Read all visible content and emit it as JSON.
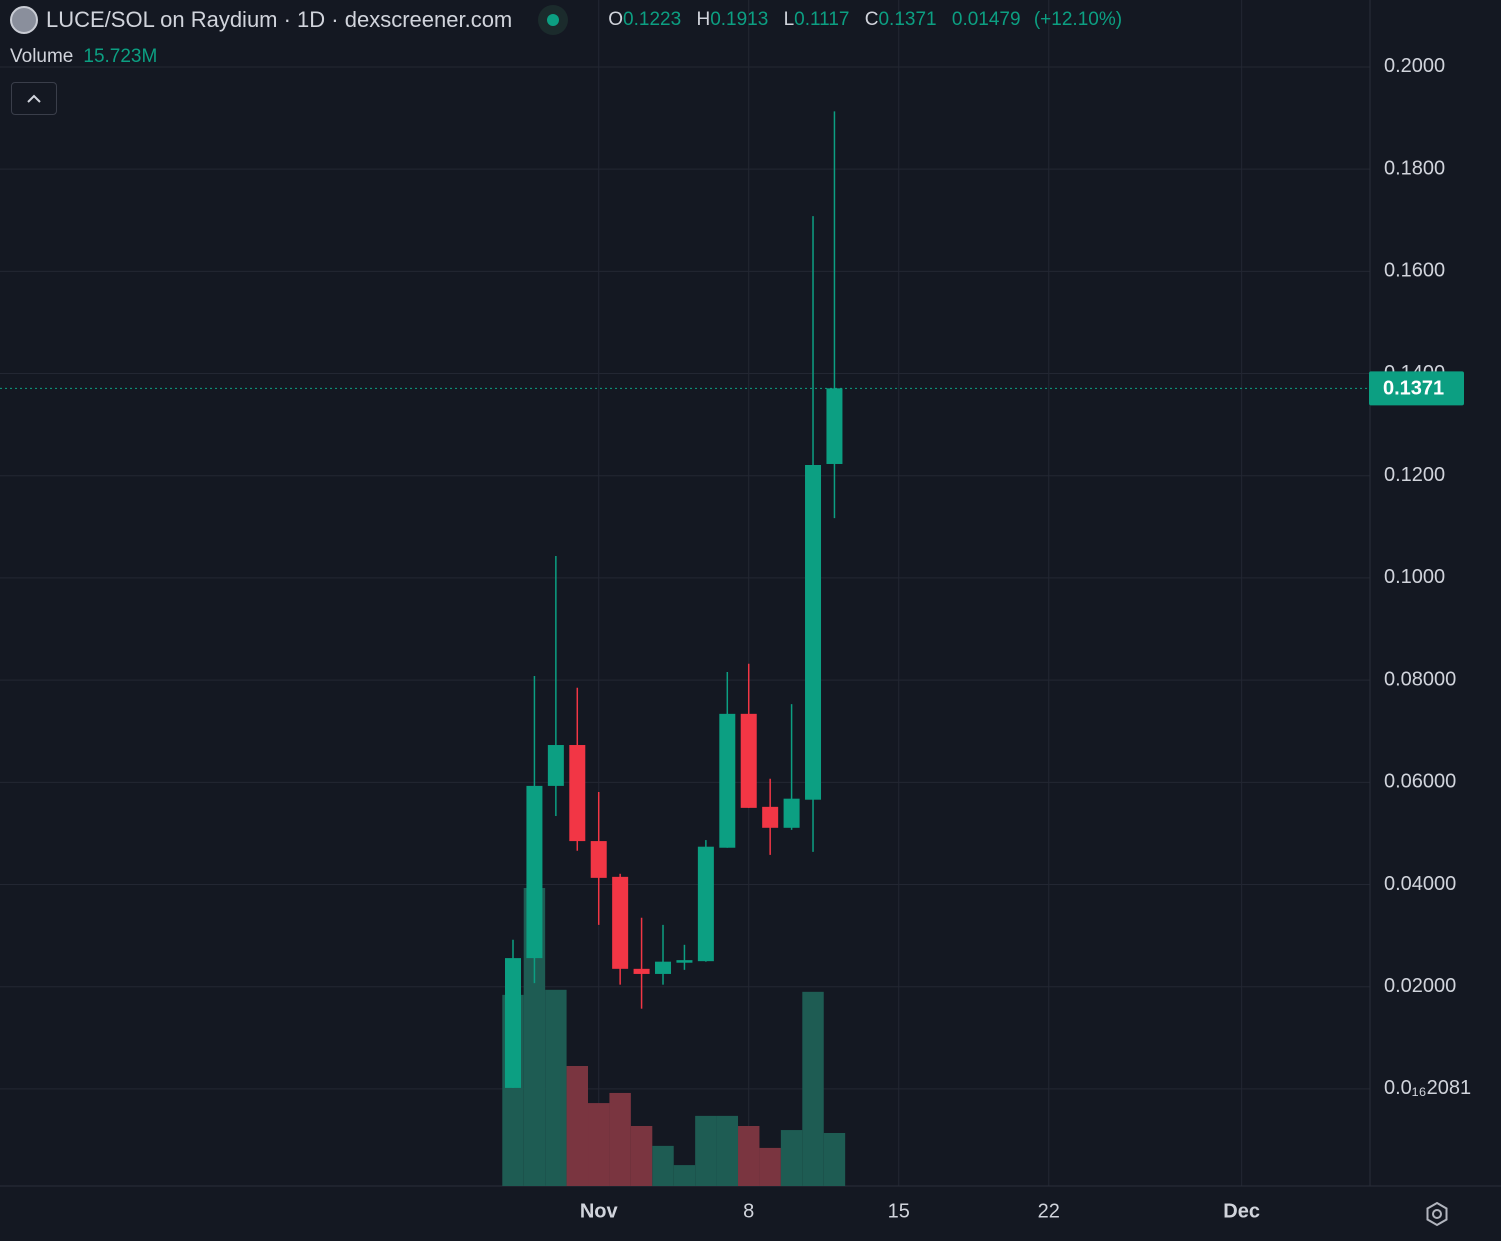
{
  "chart_data": {
    "type": "candlestick",
    "title": "LUCE/SOL on Raydium · 1D · dexscreener.com",
    "ohlc_labels": [
      "O",
      "H",
      "L",
      "C"
    ],
    "change": "0.01479",
    "change_pct": "(+12.10%)",
    "categories": [
      null,
      null,
      null,
      null,
      "Nov",
      null,
      null,
      null,
      null,
      null,
      null,
      "8",
      null,
      null,
      null,
      null,
      null,
      null,
      "15",
      null,
      null,
      null,
      null,
      null,
      null,
      "22",
      null,
      null,
      null,
      null,
      null,
      null,
      null,
      null,
      "Dec"
    ],
    "open": [
      0.0002,
      0.0256,
      0.0593,
      0.0673,
      0.0485,
      0.0415,
      0.0235,
      0.0225,
      0.0247,
      0.025,
      0.0472,
      0.0734,
      0.0552,
      0.0511,
      0.0566,
      0.1223,
      null,
      null,
      null,
      null,
      null,
      null,
      null,
      null,
      null,
      null,
      null,
      null,
      null,
      null,
      null,
      null,
      null,
      null,
      null
    ],
    "high": [
      0.0292,
      0.0808,
      0.1043,
      0.0785,
      0.0581,
      0.0421,
      0.0335,
      0.0321,
      0.0282,
      0.0487,
      0.0816,
      0.0832,
      0.0607,
      0.0753,
      0.1708,
      0.1913,
      null,
      null,
      null,
      null,
      null,
      null,
      null,
      null,
      null,
      null,
      null,
      null,
      null,
      null,
      null,
      null,
      null,
      null,
      null
    ],
    "low": [
      0.0002,
      0.0207,
      0.0534,
      0.0466,
      0.0321,
      0.0204,
      0.0157,
      0.0204,
      0.0233,
      0.0249,
      0.0472,
      0.055,
      0.0458,
      0.0507,
      0.0464,
      0.1117,
      null,
      null,
      null,
      null,
      null,
      null,
      null,
      null,
      null,
      null,
      null,
      null,
      null,
      null,
      null,
      null,
      null,
      null,
      null
    ],
    "close": [
      0.0256,
      0.0593,
      0.0673,
      0.0485,
      0.0413,
      0.0235,
      0.0225,
      0.0249,
      0.0252,
      0.0474,
      0.0734,
      0.055,
      0.0511,
      0.0568,
      0.1221,
      0.1371,
      null,
      null,
      null,
      null,
      null,
      null,
      null,
      null,
      null,
      null,
      null,
      null,
      null,
      null,
      null,
      null,
      null,
      null,
      null
    ],
    "volume": {
      "name": "Volume",
      "values": [
        56.7,
        88.4,
        58.2,
        35.6,
        24.6,
        27.6,
        17.8,
        11.9,
        6.2,
        20.8,
        20.8,
        17.8,
        11.3,
        16.6,
        57.6,
        15.723,
        null,
        null,
        null,
        null,
        null,
        null,
        null,
        null,
        null,
        null,
        null,
        null,
        null,
        null,
        null,
        null,
        null,
        null,
        null
      ],
      "value_labels": [
        null,
        null,
        null,
        null,
        null,
        null,
        null,
        null,
        null,
        null,
        null,
        null,
        null,
        null,
        null,
        "15.723M",
        null,
        null,
        null,
        null,
        null,
        null,
        null,
        null,
        null,
        null,
        null,
        null,
        null,
        null,
        null,
        null,
        null,
        null,
        null
      ]
    },
    "up_color": "#0c9f82",
    "down_color": "#f23645",
    "up_volume_color": "#1e5c53",
    "down_volume_color": "#7a3540",
    "ylim": [
      -0.019,
      0.2131
    ],
    "yticks": [
      {
        "value": 2.081e-17,
        "label": "0.0₁₆2081"
      },
      {
        "value": 0.02,
        "label": "0.02000"
      },
      {
        "value": 0.04,
        "label": "0.04000"
      },
      {
        "value": 0.06,
        "label": "0.06000"
      },
      {
        "value": 0.08,
        "label": "0.08000"
      },
      {
        "value": 0.1,
        "label": "0.1000"
      },
      {
        "value": 0.12,
        "label": "0.1200"
      },
      {
        "value": 0.14,
        "label": "0.1400"
      },
      {
        "value": 0.16,
        "label": "0.1600"
      },
      {
        "value": 0.18,
        "label": "0.1800"
      },
      {
        "value": 0.2,
        "label": "0.2000"
      }
    ],
    "grid": true
  }
}
